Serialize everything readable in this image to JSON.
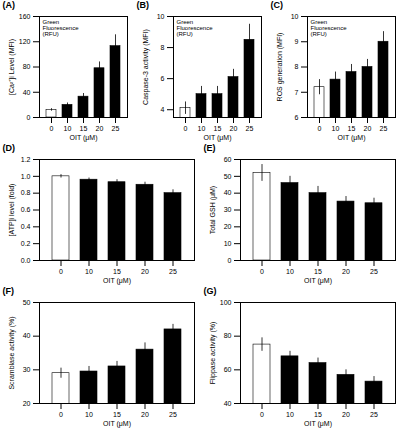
{
  "chart_data": [
    {
      "type": "bar",
      "title": "(A)",
      "ylabel": "[Ca²⁺]i Level (MFI)",
      "xlabel": "OIT (μM)",
      "categories": [
        0,
        10,
        15,
        20,
        25
      ],
      "values": [
        12,
        20,
        33,
        78,
        113
      ],
      "errors": [
        2,
        3,
        5,
        10,
        18
      ],
      "colors": [
        "white",
        "black",
        "black",
        "black",
        "black"
      ],
      "ylim": [
        0,
        160
      ],
      "yticks": [
        0,
        40,
        80,
        120,
        160
      ],
      "annotation": "Green\nFluorescence\n(RFU)"
    },
    {
      "type": "bar",
      "title": "(B)",
      "ylabel": "Caspase-3 activity (MFI)",
      "xlabel": "OIT (μM)",
      "categories": [
        0,
        10,
        15,
        20,
        25
      ],
      "values": [
        4.1,
        5.0,
        5.0,
        6.1,
        8.5
      ],
      "errors": [
        0.4,
        0.5,
        0.5,
        0.5,
        1.0
      ],
      "colors": [
        "white",
        "black",
        "black",
        "black",
        "black"
      ],
      "ylim": [
        3.5,
        10
      ],
      "yticks": [
        4,
        6,
        8,
        10
      ],
      "annotation": "Green\nFluorescence\n(RFU)"
    },
    {
      "type": "bar",
      "title": "(C)",
      "ylabel": "ROS generation (MFI)",
      "xlabel": "OIT (μM)",
      "categories": [
        0,
        10,
        15,
        20,
        25
      ],
      "values": [
        7.2,
        7.5,
        7.8,
        8.0,
        9.0
      ],
      "errors": [
        0.3,
        0.3,
        0.3,
        0.3,
        0.4
      ],
      "colors": [
        "white",
        "black",
        "black",
        "black",
        "black"
      ],
      "ylim": [
        6,
        10
      ],
      "yticks": [
        6,
        7,
        8,
        9,
        10
      ],
      "annotation": "Green\nFluorescence\n(RFU)"
    },
    {
      "type": "bar",
      "title": "(D)",
      "ylabel": "[ATP]i level (fold)",
      "xlabel": "OIT (μM)",
      "categories": [
        0,
        10,
        15,
        20,
        25
      ],
      "values": [
        1.0,
        0.96,
        0.93,
        0.9,
        0.8
      ],
      "errors": [
        0.02,
        0.02,
        0.03,
        0.03,
        0.04
      ],
      "colors": [
        "white",
        "black",
        "black",
        "black",
        "black"
      ],
      "ylim": [
        0.0,
        1.2
      ],
      "yticks": [
        {
          "value": 0,
          "label": "0.0"
        },
        0.2,
        0.4,
        0.6,
        0.8,
        {
          "value": 1,
          "label": "1.0"
        },
        1.2
      ]
    },
    {
      "type": "bar",
      "title": "(E)",
      "ylabel": "Total GSH (μM)",
      "xlabel": "OIT (μM)",
      "categories": [
        0,
        10,
        15,
        20,
        25
      ],
      "values": [
        52,
        46,
        40,
        35,
        34
      ],
      "errors": [
        5,
        4,
        4,
        3,
        3
      ],
      "colors": [
        "white",
        "black",
        "black",
        "black",
        "black"
      ],
      "ylim": [
        0,
        60
      ],
      "yticks": [
        0,
        10,
        20,
        30,
        40,
        50,
        60
      ]
    },
    {
      "type": "bar",
      "title": "(F)",
      "ylabel": "Scramblase activity (%)",
      "xlabel": "OIT (μM)",
      "categories": [
        0,
        10,
        15,
        20,
        25
      ],
      "values": [
        29,
        29.5,
        31,
        36,
        42
      ],
      "errors": [
        1.5,
        1.5,
        1.5,
        2.0,
        1.5
      ],
      "colors": [
        "white",
        "black",
        "black",
        "black",
        "black"
      ],
      "ylim": [
        20,
        50
      ],
      "yticks": [
        20,
        30,
        40,
        50
      ]
    },
    {
      "type": "bar",
      "title": "(G)",
      "ylabel": "Flippase activity (%)",
      "xlabel": "OIT (μM)",
      "categories": [
        0,
        10,
        15,
        20,
        25
      ],
      "values": [
        75,
        68,
        64,
        57,
        53
      ],
      "errors": [
        4,
        3,
        3,
        3,
        3
      ],
      "colors": [
        "white",
        "black",
        "black",
        "black",
        "black"
      ],
      "ylim": [
        40,
        100
      ],
      "yticks": [
        40,
        60,
        80,
        100
      ]
    }
  ]
}
